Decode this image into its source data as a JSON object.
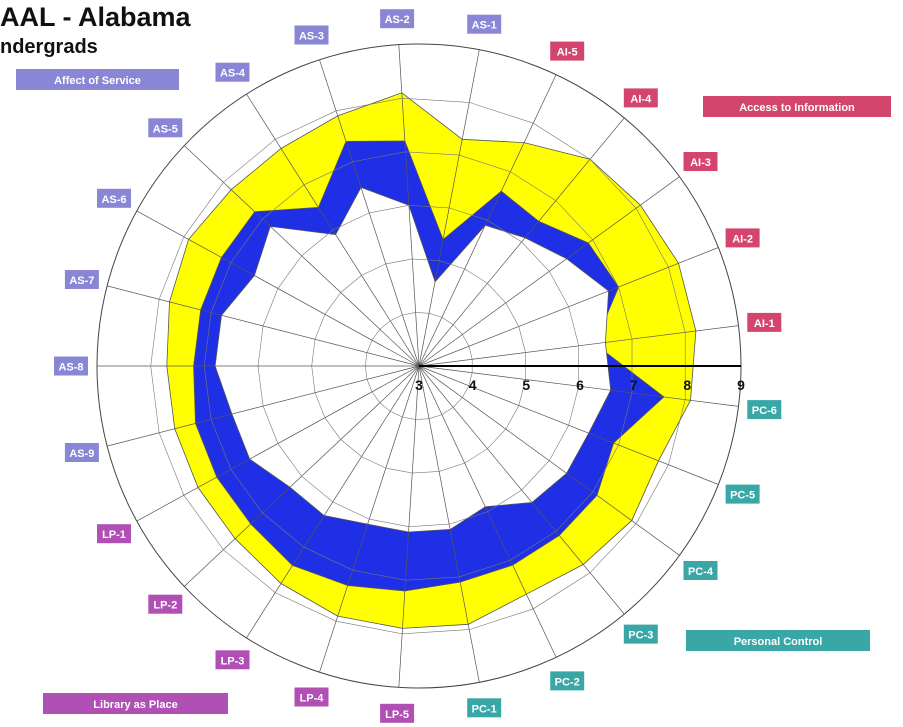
{
  "page": {
    "title": "AAL - Alabama",
    "subtitle": "ndergrads"
  },
  "chart_data": {
    "type": "radar",
    "title": "AAL - Alabama",
    "subtitle": "ndergrads",
    "radial_range": [
      3,
      9
    ],
    "radial_ticks": [
      "3",
      "4",
      "5",
      "6",
      "7",
      "8",
      "9"
    ],
    "axes": [
      "AI-1",
      "AI-2",
      "AI-3",
      "AI-4",
      "AI-5",
      "AS-1",
      "AS-2",
      "AS-3",
      "AS-4",
      "AS-5",
      "AS-6",
      "AS-7",
      "AS-8",
      "AS-9",
      "LP-1",
      "LP-2",
      "LP-3",
      "LP-4",
      "LP-5",
      "PC-1",
      "PC-2",
      "PC-3",
      "PC-4",
      "PC-5",
      "PC-6"
    ],
    "axis_colors": {
      "AS": "#8a86d6",
      "AI": "#d4456e",
      "PC": "#3aa7a7",
      "LP": "#b04fb4"
    },
    "groups": [
      {
        "key": "AS",
        "label": "Affect of Service",
        "color": "#8a86d6"
      },
      {
        "key": "AI",
        "label": "Access to Information",
        "color": "#d4456e"
      },
      {
        "key": "PC",
        "label": "Personal Control",
        "color": "#3aa7a7"
      },
      {
        "key": "LP",
        "label": "Library as Place",
        "color": "#b04fb4"
      }
    ],
    "series": [
      {
        "values": [
          8.2,
          8.2,
          8.1,
          8.0,
          7.6,
          7.3,
          8.1,
          7.9,
          7.8,
          7.8,
          7.9,
          7.8,
          7.7,
          7.7,
          7.7,
          7.7,
          7.8,
          7.9,
          7.9,
          7.9,
          7.7,
          7.8,
          7.9,
          7.8,
          8.1
        ],
        "color": "#ffff00"
      },
      {
        "values": [
          6.3,
          7.0,
          6.9,
          6.5,
          6.6,
          5.4,
          7.2,
          7.4,
          6.5,
          7.2,
          7.2,
          7.2,
          7.2,
          7.3,
          7.3,
          7.3,
          7.4,
          7.3,
          7.2,
          7.1,
          7.1,
          7.1,
          7.1,
          6.9,
          7.6
        ],
        "color": "#1f2fe6"
      },
      {
        "values": [
          6.5,
          6.8,
          6.4,
          6.1,
          5.9,
          4.6,
          6.0,
          6.5,
          5.9,
          6.8,
          6.5,
          6.8,
          6.8,
          6.6,
          6.6,
          6.3,
          6.3,
          6.1,
          6.1,
          6.1,
          5.9,
          6.3,
          6.4,
          6.4,
          6.6
        ],
        "color": "#ffffff"
      }
    ],
    "grid": true,
    "legend": "corners"
  }
}
